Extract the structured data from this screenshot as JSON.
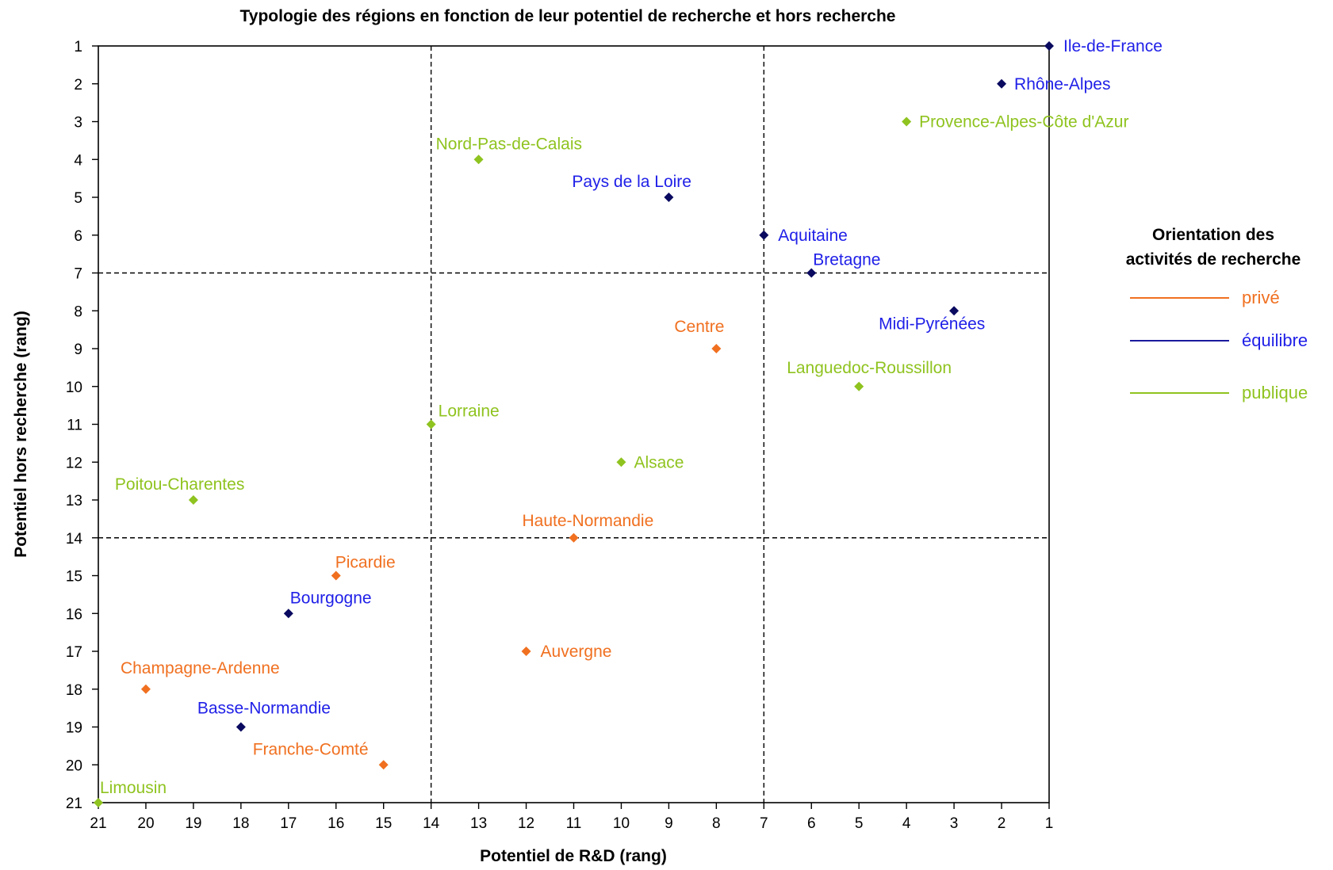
{
  "chart_data": {
    "type": "scatter",
    "title": "Typologie des régions en fonction de leur potentiel de recherche et hors recherche",
    "xlabel": "Potentiel de R&D (rang)",
    "ylabel": "Potentiel hors recherche (rang)",
    "xlim": [
      21,
      1
    ],
    "ylim": [
      21,
      1
    ],
    "x_reversed": true,
    "y_reversed": true,
    "xticks": [
      "21",
      "20",
      "19",
      "18",
      "17",
      "16",
      "15",
      "14",
      "13",
      "12",
      "11",
      "10",
      "9",
      "8",
      "7",
      "6",
      "5",
      "4",
      "3",
      "2",
      "1"
    ],
    "yticks": [
      "1",
      "2",
      "3",
      "4",
      "5",
      "6",
      "7",
      "8",
      "9",
      "10",
      "11",
      "12",
      "13",
      "14",
      "15",
      "16",
      "17",
      "18",
      "19",
      "20",
      "21"
    ],
    "reference_lines": {
      "x": [
        14,
        7
      ],
      "y": [
        7,
        14
      ],
      "style": "dashed"
    },
    "legend": {
      "title_line1": "Orientation des",
      "title_line2": "activités de recherche",
      "placement": "right",
      "items": [
        {
          "key": "prive",
          "label": "privé",
          "color": "#F07020"
        },
        {
          "key": "equilibre",
          "label": "équilibre",
          "color": "#1A1A9E"
        },
        {
          "key": "publique",
          "label": "publique",
          "color": "#8FC31F"
        }
      ]
    },
    "label_colors": {
      "prive": "#F07020",
      "equilibre": "#2020E8",
      "publique": "#8FC31F"
    },
    "marker_colors": {
      "prive": "#F07020",
      "equilibre": "#0A0A60",
      "publique": "#8FC31F"
    },
    "points": [
      {
        "name": "Ile-de-France",
        "x": 1,
        "y": 1,
        "group": "equilibre"
      },
      {
        "name": "Rhône-Alpes",
        "x": 2,
        "y": 2,
        "group": "equilibre"
      },
      {
        "name": "Provence-Alpes-Côte d'Azur",
        "x": 4,
        "y": 3,
        "group": "publique"
      },
      {
        "name": "Nord-Pas-de-Calais",
        "x": 13,
        "y": 4,
        "group": "publique"
      },
      {
        "name": "Pays de la Loire",
        "x": 9,
        "y": 5,
        "group": "equilibre"
      },
      {
        "name": "Aquitaine",
        "x": 7,
        "y": 6,
        "group": "equilibre"
      },
      {
        "name": "Bretagne",
        "x": 6,
        "y": 7,
        "group": "equilibre"
      },
      {
        "name": "Midi-Pyrénées",
        "x": 3,
        "y": 8,
        "group": "equilibre"
      },
      {
        "name": "Centre",
        "x": 8,
        "y": 9,
        "group": "prive"
      },
      {
        "name": "Languedoc-Roussillon",
        "x": 5,
        "y": 10,
        "group": "publique"
      },
      {
        "name": "Lorraine",
        "x": 14,
        "y": 11,
        "group": "publique"
      },
      {
        "name": "Alsace",
        "x": 10,
        "y": 12,
        "group": "publique"
      },
      {
        "name": "Poitou-Charentes",
        "x": 19,
        "y": 13,
        "group": "publique"
      },
      {
        "name": "Haute-Normandie",
        "x": 11,
        "y": 14,
        "group": "prive"
      },
      {
        "name": "Picardie",
        "x": 16,
        "y": 15,
        "group": "prive"
      },
      {
        "name": "Bourgogne",
        "x": 17,
        "y": 16,
        "group": "equilibre"
      },
      {
        "name": "Auvergne",
        "x": 12,
        "y": 17,
        "group": "prive"
      },
      {
        "name": "Champagne-Ardenne",
        "x": 20,
        "y": 18,
        "group": "prive"
      },
      {
        "name": "Basse-Normandie",
        "x": 18,
        "y": 19,
        "group": "equilibre"
      },
      {
        "name": "Franche-Comté",
        "x": 15,
        "y": 20,
        "group": "prive"
      },
      {
        "name": "Limousin",
        "x": 21,
        "y": 21,
        "group": "publique"
      }
    ]
  }
}
